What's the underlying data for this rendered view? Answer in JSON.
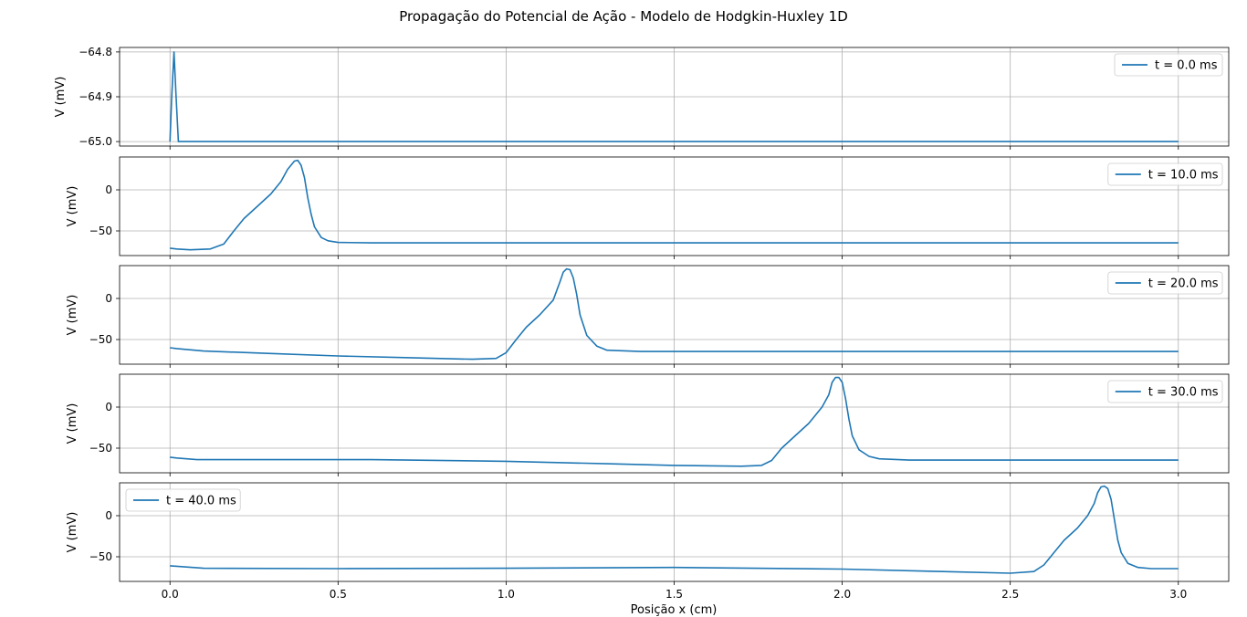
{
  "chart_data": {
    "type": "line",
    "title": "Propagação do Potencial de Ação - Modelo de Hodgkin-Huxley 1D",
    "xlabel": "Posição x (cm)",
    "ylabel": "V (mV)",
    "xlim": [
      -0.15,
      3.15
    ],
    "xticks": [
      "0.0",
      "0.5",
      "1.0",
      "1.5",
      "2.0",
      "2.5",
      "3.0"
    ],
    "grid": true,
    "line_color": "#1f77b4",
    "panels": [
      {
        "legend": "t = 0.0 ms",
        "legend_loc": "upper right",
        "ylim": [
          -65.01,
          -64.79
        ],
        "yticks": [
          "−64.8",
          "−64.9",
          "−65.0"
        ],
        "ytick_values": [
          -64.8,
          -64.9,
          -65.0
        ],
        "x": [
          0.0,
          0.005,
          0.012,
          0.018,
          0.025,
          0.5,
          1.0,
          1.5,
          2.0,
          2.5,
          3.0
        ],
        "y": [
          -65.0,
          -64.9,
          -64.8,
          -64.9,
          -65.0,
          -65.0,
          -65.0,
          -65.0,
          -65.0,
          -65.0,
          -65.0
        ]
      },
      {
        "legend": "t = 10.0 ms",
        "legend_loc": "upper right",
        "ylim": [
          -80,
          40
        ],
        "yticks": [
          "0",
          "−50"
        ],
        "ytick_values": [
          0,
          -50
        ],
        "x": [
          0.0,
          0.02,
          0.06,
          0.12,
          0.16,
          0.19,
          0.22,
          0.26,
          0.3,
          0.33,
          0.35,
          0.37,
          0.38,
          0.39,
          0.4,
          0.41,
          0.42,
          0.43,
          0.45,
          0.47,
          0.5,
          0.6,
          1.0,
          1.5,
          2.0,
          2.5,
          3.0
        ],
        "y": [
          -71,
          -72,
          -73,
          -72,
          -66,
          -50,
          -35,
          -20,
          -5,
          10,
          25,
          35,
          36,
          30,
          15,
          -10,
          -30,
          -45,
          -58,
          -62,
          -64,
          -64.5,
          -64.5,
          -64.5,
          -64.5,
          -64.5,
          -64.5
        ]
      },
      {
        "legend": "t = 20.0 ms",
        "legend_loc": "upper right",
        "ylim": [
          -80,
          40
        ],
        "yticks": [
          "0",
          "−50"
        ],
        "ytick_values": [
          0,
          -50
        ],
        "x": [
          0.0,
          0.02,
          0.1,
          0.3,
          0.5,
          0.7,
          0.9,
          0.97,
          1.0,
          1.03,
          1.06,
          1.1,
          1.14,
          1.16,
          1.17,
          1.18,
          1.19,
          1.2,
          1.21,
          1.22,
          1.24,
          1.27,
          1.3,
          1.4,
          2.0,
          2.5,
          3.0
        ],
        "y": [
          -60,
          -61,
          -64,
          -67,
          -70,
          -72,
          -74,
          -73,
          -66,
          -50,
          -35,
          -20,
          -2,
          20,
          32,
          36,
          35,
          25,
          5,
          -20,
          -45,
          -58,
          -63,
          -64.5,
          -64.5,
          -64.5,
          -64.5
        ]
      },
      {
        "legend": "t = 30.0 ms",
        "legend_loc": "upper right",
        "ylim": [
          -80,
          40
        ],
        "yticks": [
          "0",
          "−50"
        ],
        "ytick_values": [
          0,
          -50
        ],
        "x": [
          0.0,
          0.02,
          0.08,
          0.3,
          0.6,
          1.0,
          1.3,
          1.5,
          1.7,
          1.76,
          1.79,
          1.82,
          1.86,
          1.9,
          1.94,
          1.96,
          1.97,
          1.98,
          1.99,
          2.0,
          2.01,
          2.02,
          2.03,
          2.05,
          2.08,
          2.11,
          2.2,
          2.5,
          3.0
        ],
        "y": [
          -61,
          -62,
          -64,
          -64,
          -64,
          -66,
          -69,
          -71,
          -72,
          -71,
          -65,
          -50,
          -35,
          -20,
          0,
          15,
          30,
          36,
          36,
          30,
          10,
          -15,
          -35,
          -52,
          -60,
          -63,
          -64.5,
          -64.5,
          -64.5
        ]
      },
      {
        "legend": "t = 40.0 ms",
        "legend_loc": "upper left",
        "ylim": [
          -80,
          40
        ],
        "yticks": [
          "0",
          "−50"
        ],
        "ytick_values": [
          0,
          -50
        ],
        "x": [
          0.0,
          0.02,
          0.1,
          0.5,
          1.0,
          1.5,
          2.0,
          2.3,
          2.5,
          2.57,
          2.6,
          2.63,
          2.66,
          2.7,
          2.73,
          2.75,
          2.76,
          2.77,
          2.78,
          2.79,
          2.8,
          2.81,
          2.82,
          2.83,
          2.85,
          2.88,
          2.92,
          3.0
        ],
        "y": [
          -61,
          -61.5,
          -64,
          -64.5,
          -64,
          -63,
          -65,
          -68,
          -70,
          -68,
          -60,
          -45,
          -30,
          -15,
          0,
          15,
          28,
          35,
          36,
          33,
          20,
          -5,
          -30,
          -45,
          -58,
          -63,
          -64.5,
          -64.5
        ]
      }
    ]
  }
}
